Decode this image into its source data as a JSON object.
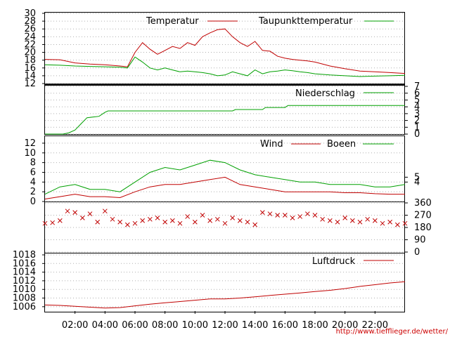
{
  "source_url": "http://www.tiefflieger.de/wetter/",
  "colors": {
    "red": "#c00000",
    "green": "#00a000",
    "grid": "#b0b0b0"
  },
  "chart_data": [
    {
      "type": "line",
      "panel": "temperature",
      "title": "",
      "ylim": [
        12,
        30
      ],
      "yticks": [
        "12",
        "14",
        "16",
        "18",
        "20",
        "22",
        "24",
        "26",
        "28",
        "30"
      ],
      "x_hours": [
        0,
        1,
        2,
        3,
        4,
        5,
        5.5,
        6,
        6.5,
        7,
        7.5,
        8,
        8.5,
        9,
        9.5,
        10,
        10.5,
        11,
        11.5,
        12,
        12.5,
        13,
        13.5,
        14,
        14.5,
        15,
        15.5,
        16,
        16.5,
        17,
        17.5,
        18,
        19,
        20,
        21,
        22,
        23,
        24
      ],
      "series": [
        {
          "name": "Temperatur",
          "color": "#c00000",
          "values": [
            18.2,
            18.1,
            17.3,
            17.0,
            16.8,
            16.5,
            16.3,
            20,
            22.5,
            20.8,
            19.5,
            20.5,
            21.5,
            21.0,
            22.5,
            21.8,
            24.0,
            25.0,
            25.8,
            26.0,
            24.0,
            22.5,
            21.5,
            22.8,
            20.5,
            20.3,
            19.0,
            18.5,
            18.2,
            18.0,
            17.8,
            17.5,
            16.5,
            15.8,
            15.2,
            15.0,
            14.8,
            14.6
          ]
        },
        {
          "name": "Taupunkttemperatur",
          "color": "#00a000",
          "values": [
            16.8,
            16.7,
            16.5,
            16.4,
            16.3,
            16.2,
            16.0,
            18.8,
            17.5,
            16.0,
            15.5,
            16.0,
            15.5,
            15.0,
            15.2,
            15.0,
            14.8,
            14.5,
            14.0,
            14.2,
            15.0,
            14.5,
            14.0,
            15.5,
            14.5,
            15.0,
            15.2,
            15.5,
            15.3,
            15.0,
            14.8,
            14.5,
            14.2,
            14.0,
            13.8,
            13.9,
            14.0,
            14.1
          ]
        }
      ]
    },
    {
      "type": "line",
      "panel": "precipitation",
      "ylim": [
        0,
        7
      ],
      "yticks_right": [
        "0",
        "1",
        "2",
        "3",
        "4",
        "5",
        "6",
        "7"
      ],
      "series": [
        {
          "name": "Niederschlag",
          "color": "#00a000",
          "x_hours": [
            0,
            1.2,
            1.6,
            2.0,
            2.4,
            2.8,
            3.6,
            4.0,
            4.2,
            12.5,
            12.7,
            14.5,
            14.7,
            16.0,
            16.2,
            24
          ],
          "values": [
            0,
            0,
            0.2,
            0.6,
            1.5,
            2.4,
            2.6,
            3.2,
            3.4,
            3.4,
            3.6,
            3.6,
            3.9,
            3.9,
            4.2,
            4.2
          ]
        }
      ]
    },
    {
      "type": "line",
      "panel": "wind",
      "ylim": [
        0,
        13
      ],
      "yticks": [
        "0",
        "2",
        "4",
        "6",
        "8",
        "10",
        "12"
      ],
      "yticks_right": [
        "4",
        "5"
      ],
      "x_hours": [
        0,
        1,
        2,
        3,
        4,
        5,
        6,
        7,
        8,
        9,
        10,
        11,
        12,
        13,
        14,
        15,
        16,
        17,
        18,
        19,
        20,
        21,
        22,
        23,
        24
      ],
      "series": [
        {
          "name": "Wind",
          "color": "#c00000",
          "values": [
            0.5,
            1.0,
            1.5,
            1.0,
            1.0,
            0.8,
            2.0,
            3.0,
            3.5,
            3.5,
            4.0,
            4.5,
            5.0,
            3.5,
            3.0,
            2.5,
            2.0,
            2.0,
            2.0,
            2.0,
            1.8,
            1.8,
            1.6,
            1.5,
            1.5
          ]
        },
        {
          "name": "Boeen",
          "color": "#00a000",
          "values": [
            1.5,
            3.0,
            3.5,
            2.5,
            2.5,
            2.0,
            4.0,
            6.0,
            7.0,
            6.5,
            7.5,
            8.5,
            8.0,
            6.5,
            5.5,
            5.0,
            4.5,
            4.0,
            4.0,
            3.5,
            3.5,
            3.5,
            3.0,
            3.0,
            3.5
          ]
        }
      ]
    },
    {
      "type": "scatter",
      "panel": "wind-direction",
      "ylim": [
        0,
        360
      ],
      "yticks_right": [
        "0",
        "90",
        "180",
        "270",
        "360"
      ],
      "series": [
        {
          "name": "",
          "color": "#c00000",
          "marker": "x",
          "x_hours": [
            0,
            0.5,
            1,
            1.5,
            2,
            2.5,
            3,
            3.5,
            4,
            4.5,
            5,
            5.5,
            6,
            6.5,
            7,
            7.5,
            8,
            8.5,
            9,
            9.5,
            10,
            10.5,
            11,
            11.5,
            12,
            12.5,
            13,
            13.5,
            14,
            14.5,
            15,
            15.5,
            16,
            16.5,
            17,
            17.5,
            18,
            18.5,
            19,
            19.5,
            20,
            20.5,
            21,
            21.5,
            22,
            22.5,
            23,
            23.5,
            24
          ],
          "values": [
            210,
            215,
            230,
            300,
            290,
            250,
            280,
            220,
            300,
            240,
            220,
            200,
            210,
            230,
            240,
            250,
            220,
            230,
            210,
            260,
            220,
            270,
            230,
            240,
            210,
            250,
            230,
            220,
            200,
            290,
            280,
            270,
            270,
            250,
            260,
            280,
            270,
            240,
            230,
            220,
            250,
            230,
            220,
            240,
            230,
            210,
            220,
            200,
            210
          ]
        }
      ]
    },
    {
      "type": "line",
      "panel": "pressure",
      "ylim": [
        1005,
        1018
      ],
      "yticks": [
        "1006",
        "1008",
        "1010",
        "1012",
        "1014",
        "1016",
        "1018"
      ],
      "x_hours": [
        0,
        1,
        2,
        3,
        4,
        5,
        6,
        7,
        8,
        9,
        10,
        11,
        12,
        13,
        14,
        15,
        16,
        17,
        18,
        19,
        20,
        21,
        22,
        23,
        24
      ],
      "series": [
        {
          "name": "Luftdruck",
          "color": "#c00000",
          "values": [
            1006.4,
            1006.3,
            1006.1,
            1005.9,
            1005.7,
            1005.8,
            1006.2,
            1006.6,
            1006.9,
            1007.2,
            1007.5,
            1007.8,
            1007.8,
            1008.0,
            1008.3,
            1008.6,
            1008.9,
            1009.2,
            1009.5,
            1009.8,
            1010.2,
            1010.7,
            1011.1,
            1011.5,
            1011.8
          ]
        }
      ]
    }
  ],
  "x_axis_labels": [
    "02:00",
    "04:00",
    "06:00",
    "08:00",
    "10:00",
    "12:00",
    "14:00",
    "16:00",
    "18:00",
    "20:00",
    "22:00"
  ],
  "x_axis_label_hours": [
    2,
    4,
    6,
    8,
    10,
    12,
    14,
    16,
    18,
    20,
    22
  ]
}
